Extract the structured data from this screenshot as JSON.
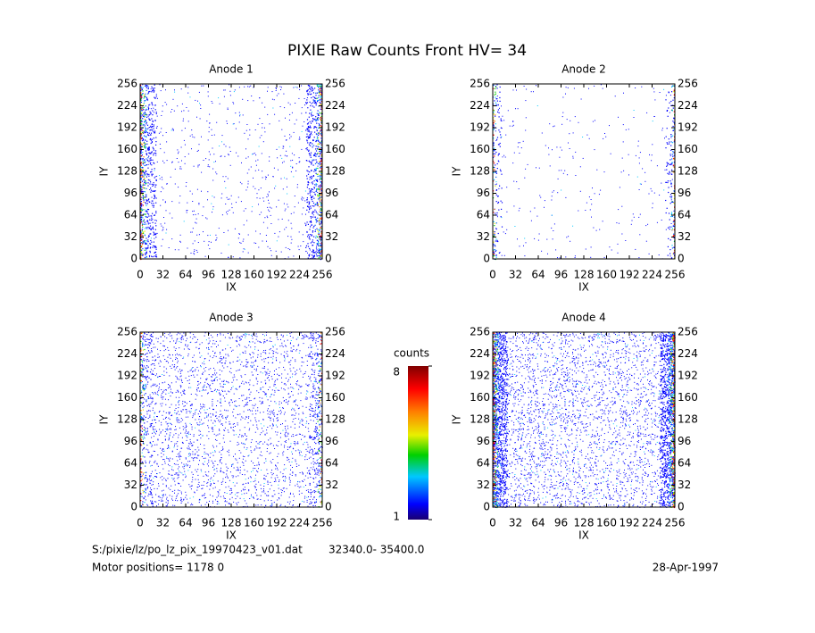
{
  "title": "PIXIE Raw Counts Front HV= 34",
  "colorbar": {
    "label": "counts",
    "lim": [
      1,
      8
    ],
    "ticks": [
      1,
      8
    ]
  },
  "footer": {
    "file": "S:/pixie/lz/po_lz_pix_19970423_v01.dat",
    "range": "32340.0- 35400.0",
    "motor": "Motor positions= 1178 0",
    "date": "28-Apr-1997"
  },
  "chart_data": [
    {
      "type": "heatmap",
      "title": "Anode 1",
      "xlabel": "IX",
      "ylabel": "IY",
      "xlim": [
        0,
        256
      ],
      "ylim": [
        0,
        256
      ],
      "xticks": [
        0,
        32,
        64,
        96,
        128,
        160,
        192,
        224,
        256
      ],
      "yticks": [
        0,
        32,
        64,
        96,
        128,
        160,
        192,
        224,
        256
      ]
    },
    {
      "type": "heatmap",
      "title": "Anode 2",
      "xlabel": "IX",
      "ylabel": "IY",
      "xlim": [
        0,
        256
      ],
      "ylim": [
        0,
        256
      ],
      "xticks": [
        0,
        32,
        64,
        96,
        128,
        160,
        192,
        224,
        256
      ],
      "yticks": [
        0,
        32,
        64,
        96,
        128,
        160,
        192,
        224,
        256
      ]
    },
    {
      "type": "heatmap",
      "title": "Anode 3",
      "xlabel": "IX",
      "ylabel": "IY",
      "xlim": [
        0,
        256
      ],
      "ylim": [
        0,
        256
      ],
      "xticks": [
        0,
        32,
        64,
        96,
        128,
        160,
        192,
        224,
        256
      ],
      "yticks": [
        0,
        32,
        64,
        96,
        128,
        160,
        192,
        224,
        256
      ]
    },
    {
      "type": "heatmap",
      "title": "Anode 4",
      "xlabel": "IX",
      "ylabel": "IY",
      "xlim": [
        0,
        256
      ],
      "ylim": [
        0,
        256
      ],
      "xticks": [
        0,
        32,
        64,
        96,
        128,
        160,
        192,
        224,
        256
      ],
      "yticks": [
        0,
        32,
        64,
        96,
        128,
        160,
        192,
        224,
        256
      ]
    }
  ]
}
